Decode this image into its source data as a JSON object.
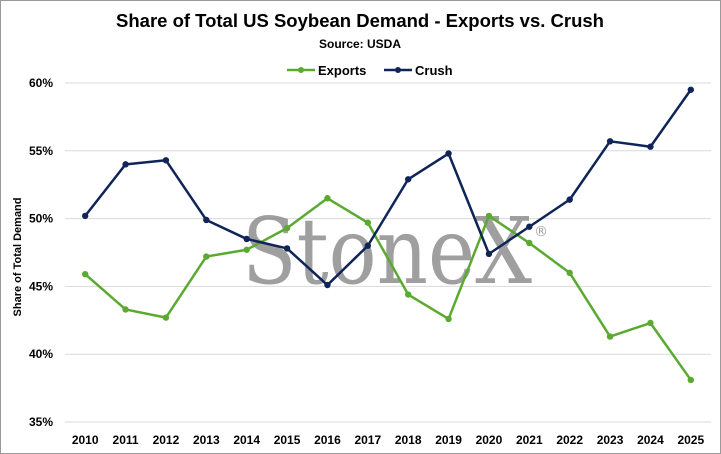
{
  "chart_data": {
    "type": "line",
    "title": "Share of Total US Soybean Demand - Exports vs. Crush",
    "subtitle": "Source: USDA",
    "ylabel": "Share of Total Demand",
    "xlabel": "",
    "categories": [
      "2010",
      "2011",
      "2012",
      "2013",
      "2014",
      "2015",
      "2016",
      "2017",
      "2018",
      "2019",
      "2020",
      "2021",
      "2022",
      "2023",
      "2024",
      "2025"
    ],
    "ylim": [
      35,
      60
    ],
    "yticks": [
      35,
      40,
      45,
      50,
      55,
      60
    ],
    "ytick_labels": [
      "35%",
      "40%",
      "45%",
      "50%",
      "55%",
      "60%"
    ],
    "grid": true,
    "legend_position": "top-center",
    "series": [
      {
        "name": "Exports",
        "color": "#5aaa32",
        "values": [
          45.9,
          43.3,
          42.7,
          47.2,
          47.7,
          49.3,
          51.5,
          49.7,
          44.4,
          42.6,
          50.2,
          48.2,
          46.0,
          41.3,
          42.3,
          38.1
        ]
      },
      {
        "name": "Crush",
        "color": "#0f2457",
        "values": [
          50.2,
          54.0,
          54.3,
          49.9,
          48.5,
          47.8,
          45.1,
          48.0,
          52.9,
          54.8,
          47.4,
          49.4,
          51.4,
          55.7,
          55.3,
          59.5
        ]
      }
    ]
  },
  "watermark": {
    "text": "StoneX",
    "mark": "®"
  }
}
